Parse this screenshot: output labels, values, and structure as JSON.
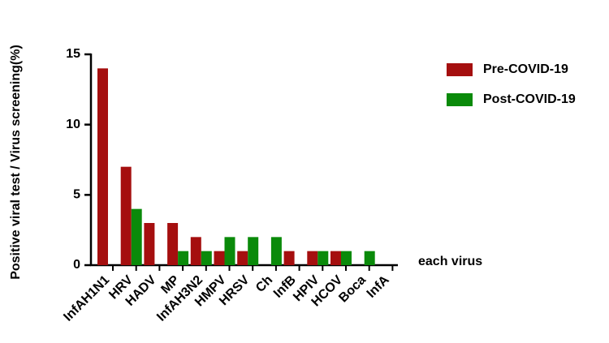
{
  "chart_data": {
    "type": "bar",
    "x_label": "each virus",
    "y_label": "Positive viral test / Virus screening(%)",
    "categories": [
      "InfAH1N1",
      "HRV",
      "HADV",
      "MP",
      "InfAH3N2",
      "HMPV",
      "HRSV",
      "Ch",
      "InfB",
      "HPIV",
      "HCOV",
      "Boca",
      "InfA"
    ],
    "series": [
      {
        "name": "Pre-COVID-19",
        "color": "#a50f0f",
        "values": [
          14,
          7,
          3,
          3,
          2,
          1,
          1,
          0,
          1,
          1,
          1,
          0,
          0
        ]
      },
      {
        "name": "Post-COVID-19",
        "color": "#0a8a0a",
        "values": [
          0,
          4,
          0,
          1,
          1,
          2,
          2,
          2,
          0,
          1,
          1,
          1,
          0
        ]
      }
    ],
    "ylim": [
      0,
      15
    ],
    "yticks": [
      0,
      5,
      10,
      15
    ],
    "legend": "right"
  }
}
